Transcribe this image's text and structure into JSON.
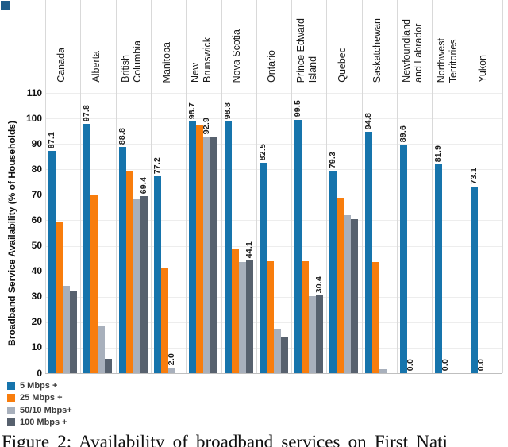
{
  "figure": {
    "caption_visible_text": "Figure 2: Availability of broadband services on First Nati",
    "top_left_marker_color": "#1E5C8A"
  },
  "chart_data": {
    "type": "bar",
    "title": "",
    "xlabel": "",
    "ylabel": "Broadband Service Availability (% of Households)",
    "ylim": [
      0,
      110
    ],
    "ytick_step": 10,
    "grid": true,
    "legend_position": "bottom-left",
    "categories": [
      "Canada",
      "Alberta",
      "British\nColumbia",
      "Manitoba",
      "New\nBrunswick",
      "Nova Scotia",
      "Ontario",
      "Prince Edward\nIsland",
      "Quebec",
      "Saskatchewan",
      "Newfoundland\nand Labrador",
      "Northwest\nTerritories",
      "Yukon"
    ],
    "series": [
      {
        "name": "5 Mbps +",
        "color": "#1674AC",
        "values": [
          87.1,
          97.8,
          88.8,
          77.2,
          98.7,
          98.8,
          82.5,
          99.5,
          79.3,
          94.8,
          89.6,
          81.9,
          73.1
        ]
      },
      {
        "name": "25 Mbps +",
        "color": "#F87D0D",
        "values": [
          59.3,
          70.1,
          79.5,
          41.0,
          97.3,
          48.5,
          44.0,
          44.0,
          68.8,
          43.5,
          0.0,
          0.0,
          0.0
        ]
      },
      {
        "name": "50/10 Mbps+",
        "color": "#A8B0BC",
        "values": [
          34.2,
          18.8,
          68.3,
          2.0,
          92.9,
          43.5,
          17.5,
          30.2,
          62.0,
          1.5,
          0.0,
          0.0,
          0.0
        ]
      },
      {
        "name": "100 Mbps +",
        "color": "#57616E",
        "values": [
          32.0,
          5.5,
          69.4,
          0.0,
          92.8,
          44.1,
          14.0,
          30.4,
          60.5,
          0.0,
          0.0,
          0.0,
          0.0
        ]
      }
    ],
    "data_labels": [
      {
        "category_index": 0,
        "series_index": 0,
        "text": "87.1"
      },
      {
        "category_index": 1,
        "series_index": 0,
        "text": "97.8"
      },
      {
        "category_index": 2,
        "series_index": 0,
        "text": "88.8"
      },
      {
        "category_index": 2,
        "series_index": 3,
        "text": "69.4"
      },
      {
        "category_index": 3,
        "series_index": 0,
        "text": "77.2"
      },
      {
        "category_index": 3,
        "series_index": 2,
        "text": "2.0"
      },
      {
        "category_index": 4,
        "series_index": 0,
        "text": "98.7"
      },
      {
        "category_index": 4,
        "series_index": 2,
        "text": "92.9"
      },
      {
        "category_index": 5,
        "series_index": 0,
        "text": "98.8"
      },
      {
        "category_index": 5,
        "series_index": 3,
        "text": "44.1"
      },
      {
        "category_index": 6,
        "series_index": 0,
        "text": "82.5"
      },
      {
        "category_index": 7,
        "series_index": 0,
        "text": "99.5"
      },
      {
        "category_index": 7,
        "series_index": 3,
        "text": "30.4"
      },
      {
        "category_index": 8,
        "series_index": 0,
        "text": "79.3"
      },
      {
        "category_index": 9,
        "series_index": 0,
        "text": "94.8"
      },
      {
        "category_index": 10,
        "series_index": 0,
        "text": "89.6"
      },
      {
        "category_index": 10,
        "series_index": 1,
        "text": "0.0"
      },
      {
        "category_index": 11,
        "series_index": 0,
        "text": "81.9"
      },
      {
        "category_index": 11,
        "series_index": 1,
        "text": "0.0"
      },
      {
        "category_index": 12,
        "series_index": 0,
        "text": "73.1"
      },
      {
        "category_index": 12,
        "series_index": 1,
        "text": "0.0"
      }
    ]
  }
}
